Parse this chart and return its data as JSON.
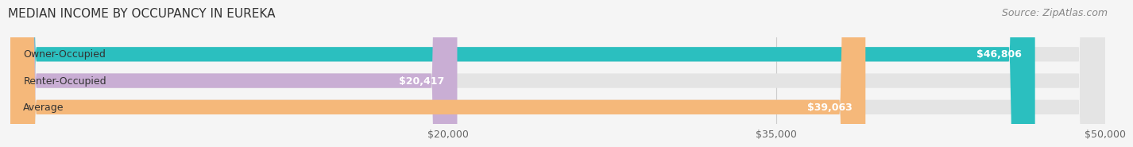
{
  "title": "MEDIAN INCOME BY OCCUPANCY IN EUREKA",
  "source": "Source: ZipAtlas.com",
  "categories": [
    "Owner-Occupied",
    "Renter-Occupied",
    "Average"
  ],
  "values": [
    46806,
    20417,
    39063
  ],
  "bar_colors": [
    "#2bbfbf",
    "#c9aed4",
    "#f5b87a"
  ],
  "bar_labels": [
    "$46,806",
    "$20,417",
    "$39,063"
  ],
  "xlim": [
    0,
    50000
  ],
  "xticks": [
    20000,
    35000,
    50000
  ],
  "xtick_labels": [
    "$20,000",
    "$35,000",
    "$50,000"
  ],
  "background_color": "#f5f5f5",
  "bar_background_color": "#e4e4e4",
  "title_fontsize": 11,
  "source_fontsize": 9,
  "label_fontsize": 9,
  "tick_fontsize": 9,
  "bar_height": 0.55,
  "bar_label_color_inside": "#ffffff",
  "bar_label_color_outside": "#555555"
}
